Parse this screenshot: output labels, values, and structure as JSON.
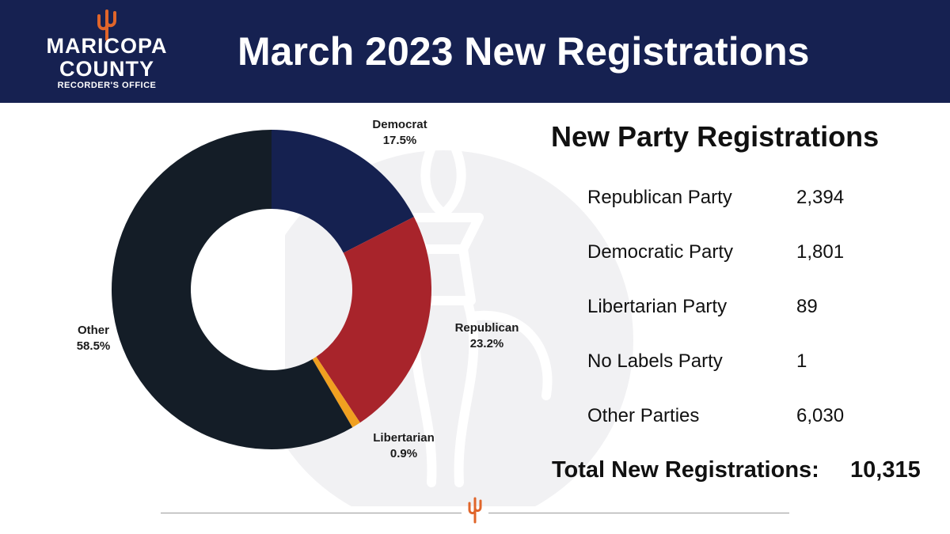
{
  "header": {
    "logo": {
      "line1": "MARICOPA",
      "line2": "COUNTY",
      "line3": "RECORDER'S OFFICE",
      "icon": "cactus-icon"
    },
    "title": "March 2023 New Registrations"
  },
  "panel": {
    "title": "New Party Registrations",
    "rows": [
      {
        "party": "Republican Party",
        "count": "2,394"
      },
      {
        "party": "Democratic Party",
        "count": "1,801"
      },
      {
        "party": "Libertarian Party",
        "count": "89"
      },
      {
        "party": "No Labels Party",
        "count": "1"
      },
      {
        "party": "Other Parties",
        "count": "6,030"
      }
    ],
    "total_label": "Total New Registrations:",
    "total_value": "10,315"
  },
  "chart_data": {
    "type": "pie",
    "donut": true,
    "slices": [
      {
        "label": "Democrat",
        "value": 17.5,
        "display": "17.5%",
        "color": "#152150"
      },
      {
        "label": "Republican",
        "value": 23.2,
        "display": "23.2%",
        "color": "#a8242b"
      },
      {
        "label": "Libertarian",
        "value": 0.9,
        "display": "0.9%",
        "color": "#f0a020"
      },
      {
        "label": "Other",
        "value": 58.5,
        "display": "58.5%",
        "color": "#141d27"
      }
    ]
  },
  "colors": {
    "header_bg": "#162151",
    "accent_orange": "#e0652a",
    "watermark": "#f1f1f3"
  },
  "icons": {
    "watermark": "torch-icon",
    "footer": "cactus-icon"
  }
}
